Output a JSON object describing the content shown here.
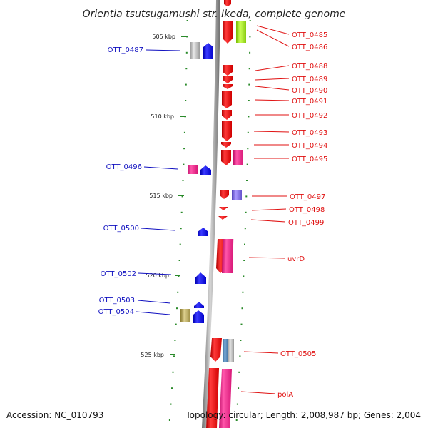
{
  "title": "Orientia tsutsugamushi str. Ikeda, complete genome",
  "footer": {
    "accession": "Accession: NC_010793",
    "info": "Topology: circular; Length: 2,008,987 bp; Genes: 2,004"
  },
  "ticks": [
    "505 kbp",
    "510 kbp",
    "515 kbp",
    "520 kbp",
    "525 kbp"
  ],
  "colors": {
    "forward_label": "#e01010",
    "reverse_label": "#1010c0",
    "red_gene": "#ee1111",
    "blue_gene": "#1a1aee",
    "magenta_gene": "#ee2288",
    "gray_gene": "#a8a8a8",
    "lime_gene": "#99dd22",
    "purple_gene": "#7766dd",
    "olive_gene": "#b8a860",
    "steelblue_gene": "#4a7fb0",
    "tick_dots": "#2a8a2a",
    "backbone": "#888888"
  },
  "genes_forward": [
    {
      "label": "OTT_0485"
    },
    {
      "label": "OTT_0486"
    },
    {
      "label": "OTT_0488"
    },
    {
      "label": "OTT_0489"
    },
    {
      "label": "OTT_0490"
    },
    {
      "label": "OTT_0491"
    },
    {
      "label": "OTT_0492"
    },
    {
      "label": "OTT_0493"
    },
    {
      "label": "OTT_0494"
    },
    {
      "label": "OTT_0495"
    },
    {
      "label": "OTT_0497"
    },
    {
      "label": "OTT_0498"
    },
    {
      "label": "OTT_0499"
    },
    {
      "label": "uvrD"
    },
    {
      "label": "OTT_0505"
    },
    {
      "label": "polA"
    }
  ],
  "genes_reverse": [
    {
      "label": "OTT_0487"
    },
    {
      "label": "OTT_0496"
    },
    {
      "label": "OTT_0500"
    },
    {
      "label": "OTT_0502"
    },
    {
      "label": "OTT_0503"
    },
    {
      "label": "OTT_0504"
    }
  ]
}
